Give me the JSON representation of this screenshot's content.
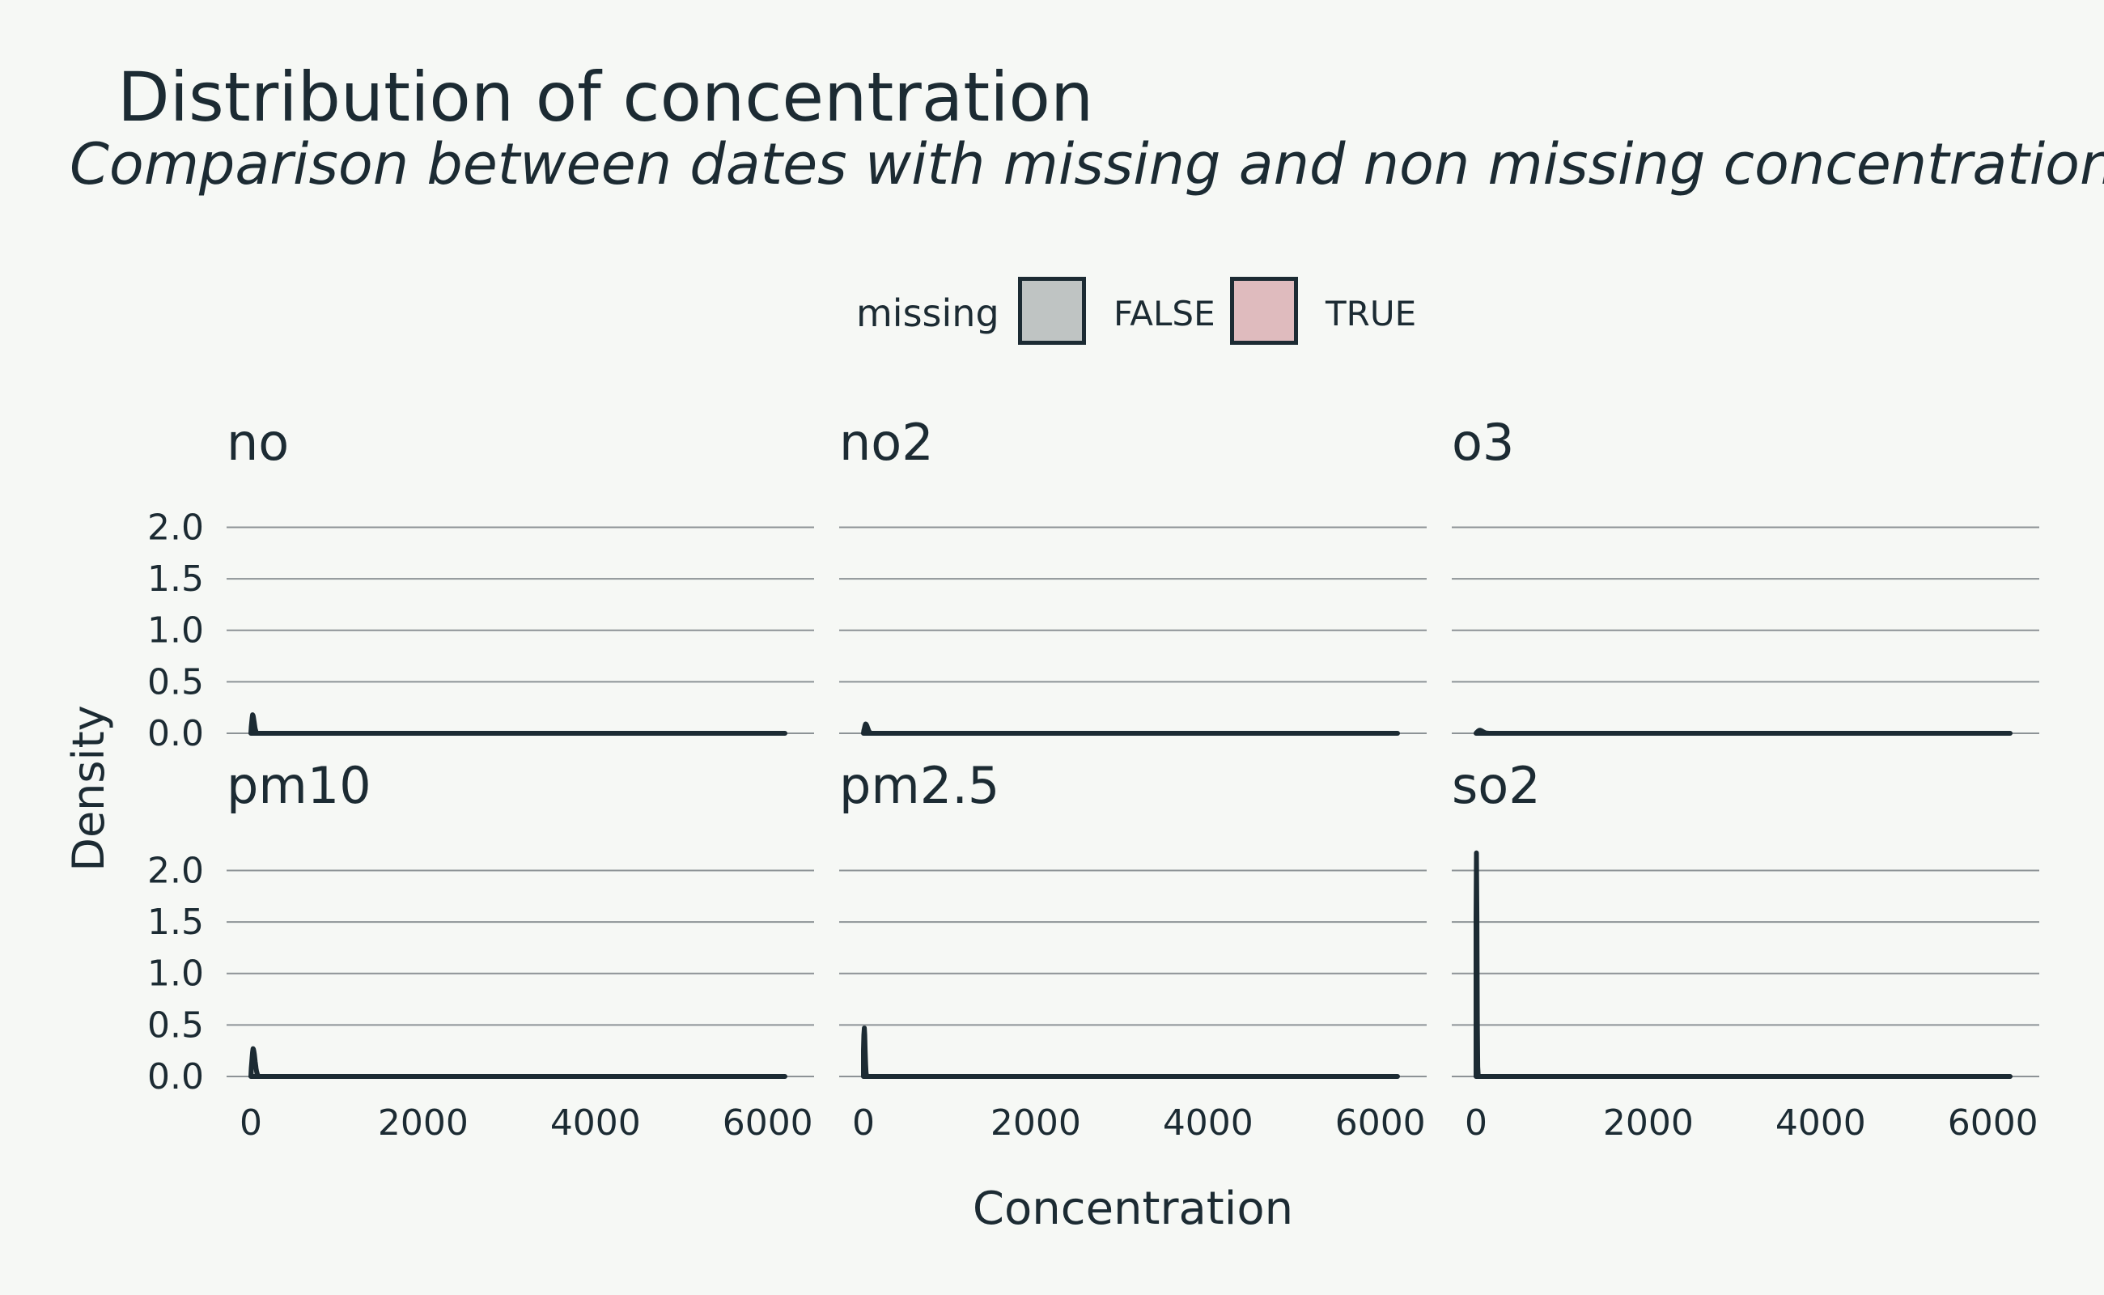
{
  "chart_data": {
    "type": "area",
    "title": "Distribution of concentration",
    "subtitle": "Comparison between dates with missing and non missing concentrations",
    "xlabel": "Concentration",
    "ylabel": "Density",
    "xlim": [
      0,
      6200
    ],
    "ylim": [
      0,
      2.2
    ],
    "x_ticks": [
      0,
      2000,
      4000,
      6000
    ],
    "y_ticks": [
      0.0,
      0.5,
      1.0,
      1.5,
      2.0
    ],
    "y_tick_labels": [
      "0.0",
      "0.5",
      "1.0",
      "1.5",
      "2.0"
    ],
    "grid": "horizontal",
    "legend": {
      "title": "missing",
      "position": "top",
      "entries": [
        {
          "label": "FALSE",
          "color": "#bfc4c3"
        },
        {
          "label": "TRUE",
          "color": "#dfbbbe"
        }
      ]
    },
    "facets": [
      {
        "name": "no",
        "peak_x": 20,
        "peak_y": 0.18,
        "x_max": 6200
      },
      {
        "name": "no2",
        "peak_x": 25,
        "peak_y": 0.09,
        "x_max": 6200
      },
      {
        "name": "o3",
        "peak_x": 40,
        "peak_y": 0.03,
        "x_max": 6200
      },
      {
        "name": "pm10",
        "peak_x": 25,
        "peak_y": 0.27,
        "x_max": 6200
      },
      {
        "name": "pm2.5",
        "peak_x": 10,
        "peak_y": 0.47,
        "x_max": 6200
      },
      {
        "name": "so2",
        "peak_x": 5,
        "peak_y": 2.17,
        "x_max": 6200
      }
    ]
  },
  "colors": {
    "background": "#f6f8f5",
    "ink": "#1c2b33",
    "grid": "#8d9396",
    "fill_false": "#bfc4c3",
    "fill_true": "#dfbbbe"
  }
}
